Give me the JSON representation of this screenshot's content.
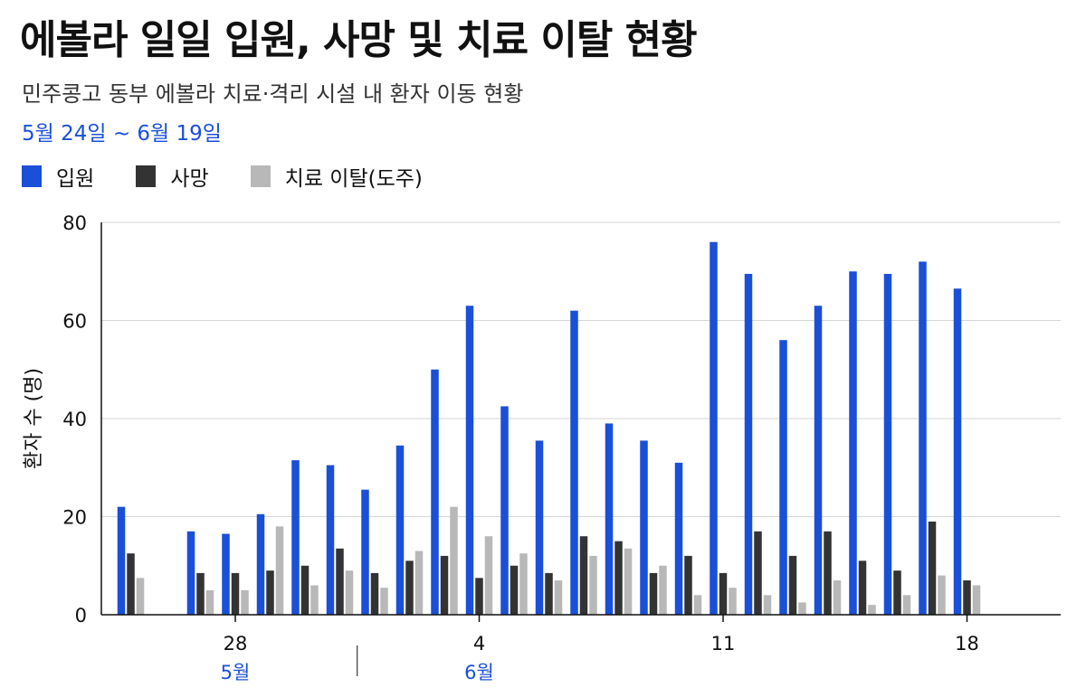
{
  "header": {
    "title": "에볼라 일일 입원, 사망 및 치료 이탈 현황",
    "subtitle": "민주콩고 동부 에볼라 치료·격리 시설 내 환자 이동 현황",
    "date_range": "5월 24일 ~ 6월 19일"
  },
  "colors": {
    "admission": "#1a4fd8",
    "death": "#333333",
    "dropout": "#b8b8b8"
  },
  "chart_data": {
    "type": "bar",
    "title": "에볼라 일일 입원, 사망 및 치료 이탈 현황",
    "subtitle": "민주콩고 동부 에볼라 치료·격리 시설 내 환자 이동 현황",
    "ylabel": "환자 수 (명)",
    "ylim": [
      0,
      80
    ],
    "yticks": [
      0,
      20,
      40,
      60,
      80
    ],
    "grid": true,
    "legend_position": "top-left",
    "categories": [
      "5/25",
      "5/26",
      "5/27",
      "5/28",
      "5/29",
      "5/30",
      "5/31",
      "6/1",
      "6/2",
      "6/3",
      "6/4",
      "6/5",
      "6/6",
      "6/7",
      "6/8",
      "6/9",
      "6/10",
      "6/11",
      "6/12",
      "6/13",
      "6/14",
      "6/15",
      "6/16",
      "6/17",
      "6/18",
      "6/19"
    ],
    "x_tick_labels": [
      {
        "category": "5/28",
        "label": "28"
      },
      {
        "category": "6/4",
        "label": "4"
      },
      {
        "category": "6/11",
        "label": "11"
      },
      {
        "category": "6/18",
        "label": "18"
      }
    ],
    "month_labels": [
      {
        "category": "5/28",
        "label": "5월"
      },
      {
        "category": "6/4",
        "label": "6월"
      }
    ],
    "series": [
      {
        "name": "입원",
        "values": [
          22,
          null,
          17,
          16.5,
          20.5,
          31.5,
          30.5,
          25.5,
          34.5,
          50,
          63,
          42.5,
          35.5,
          62,
          39,
          35.5,
          31,
          76,
          69.5,
          56,
          63,
          70,
          69.5,
          72,
          66.5,
          null
        ]
      },
      {
        "name": "사망",
        "values": [
          12.5,
          null,
          8.5,
          8.5,
          9,
          10,
          13.5,
          8.5,
          11,
          12,
          7.5,
          10,
          8.5,
          16,
          15,
          8.5,
          12,
          8.5,
          17,
          12,
          17,
          11,
          9,
          19,
          7,
          null
        ]
      },
      {
        "name": "치료 이탈(도주)",
        "values": [
          7.5,
          null,
          5,
          5,
          18,
          6,
          9,
          5.5,
          13,
          22,
          16,
          12.5,
          7,
          12,
          13.5,
          10,
          4,
          5.5,
          4,
          2.5,
          7,
          2,
          4,
          8,
          6,
          null
        ]
      }
    ]
  }
}
